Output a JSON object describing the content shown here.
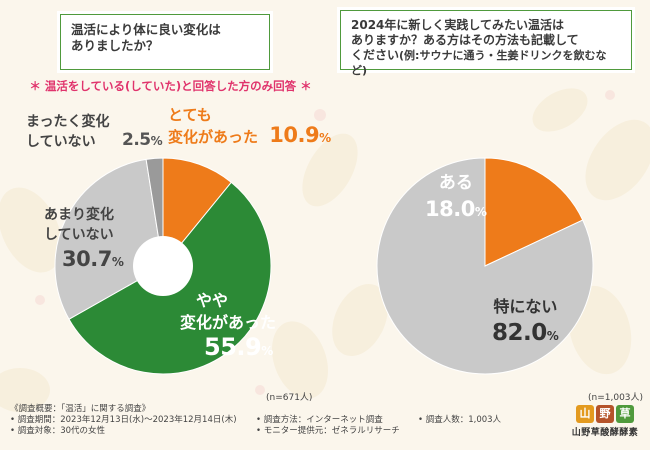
{
  "colors": {
    "orange": "#ee7b1a",
    "green": "#2c8a36",
    "gray": "#c9c9c9",
    "darkgray": "#9a9a9a",
    "accent_pink": "#e0336c",
    "frame_green": "#4f9a3c"
  },
  "left": {
    "question_line1": "温活により体に良い変化は",
    "question_line2": "ありましたか？",
    "note": "温活をしている(していた)と回答した方のみ回答",
    "note_mark": "＊",
    "sample": "(n=671人)",
    "labels": {
      "a_l1": "とても",
      "a_l2": "変化があった",
      "a_pct": "10.9",
      "b_l1": "やや",
      "b_l2": "変化があった",
      "b_pct": "55.9",
      "c_l1": "あまり変化",
      "c_l2": "していない",
      "c_pct": "30.7",
      "d_l1": "まったく変化",
      "d_l2": "していない",
      "d_pct": "2.5"
    },
    "pct_sign": "%"
  },
  "right": {
    "question_line1": "2024年に新しく実践してみたい温活は",
    "question_line2": "ありますか？ある方はその方法も記載して",
    "question_line3": "ください",
    "question_example": "(例:サウナに通う・生姜ドリンクを飲むなど)",
    "sample": "(n=1,003人)",
    "labels": {
      "a_l1": "ある",
      "a_pct": "18.0",
      "b_l1": "特にない",
      "b_pct": "82.0"
    },
    "pct_sign": "%"
  },
  "chart_data": [
    {
      "type": "pie",
      "subtype": "donut",
      "title": "温活により体に良い変化はありましたか？",
      "note": "温活をしている(していた)と回答した方のみ回答",
      "n": "671人",
      "categories": [
        "とても変化があった",
        "やや変化があった",
        "あまり変化していない",
        "まったく変化していない"
      ],
      "values": [
        10.9,
        55.9,
        30.7,
        2.5
      ],
      "unit": "%",
      "colors": [
        "#ee7b1a",
        "#2c8a36",
        "#c9c9c9",
        "#9a9a9a"
      ]
    },
    {
      "type": "pie",
      "title": "2024年に新しく実践してみたい温活はありますか？ある方はその方法も記載してください(例:サウナに通う・生姜ドリンクを飲むなど)",
      "n": "1,003人",
      "categories": [
        "ある",
        "特にない"
      ],
      "values": [
        18.0,
        82.0
      ],
      "unit": "%",
      "colors": [
        "#ee7b1a",
        "#c9c9c9"
      ]
    }
  ],
  "footer": {
    "line1": "《調査概要：「温活」に関する調査》",
    "period": "• 調査期間：2023年12月13日(水)～2023年12月14日(木)",
    "target": "• 調査対象：30代の女性",
    "method": "• 調査方法：インターネット調査",
    "provider": "• モニター提供元：ゼネラルリサーチ",
    "count": "• 調査人数：1,003人"
  },
  "logo": {
    "m1": "山",
    "m2": "野",
    "m3": "草",
    "name": "山野草酸酵酵素"
  }
}
